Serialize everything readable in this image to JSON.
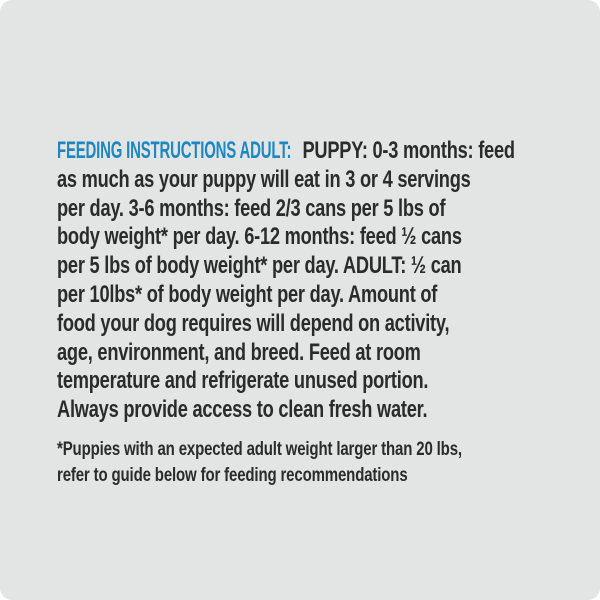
{
  "colors": {
    "panel_background": "#e3e5e4",
    "page_background": "#ffffff",
    "heading_blue": "#1e87c0",
    "body_text": "#2b2b2b"
  },
  "heading": {
    "label": "FEEDING INSTRUCTIONS ADULT:"
  },
  "body": {
    "lines": [
      "PUPPY: 0-3 months: feed",
      "as much as your puppy will eat in 3 or 4 servings",
      "per day. 3-6 months: feed 2/3 cans per 5 lbs of",
      "body weight* per day. 6-12 months: feed ½ cans",
      "per 5 lbs of body weight* per day. ADULT: ½ can",
      "per 10lbs* of body weight per day. Amount of",
      "food your dog requires will depend on activity,",
      "age, environment, and breed. Feed at room",
      "temperature and refrigerate unused portion.",
      "Always provide access to clean fresh water."
    ]
  },
  "footnote": {
    "lines": [
      "*Puppies with an expected adult weight larger than 20 lbs,",
      "refer to guide below for feeding recommendations"
    ]
  }
}
